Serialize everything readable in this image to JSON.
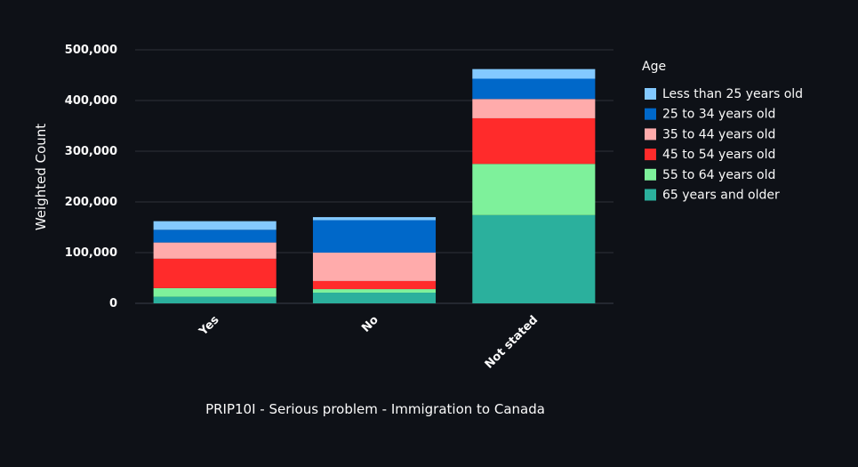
{
  "chart_data": {
    "type": "bar",
    "stacked": true,
    "categories": [
      "Yes",
      "No",
      "Not stated"
    ],
    "xlabel": "PRIP10I - Serious problem - Immigration to Canada",
    "ylabel": "Weighted Count",
    "ylim": [
      0,
      520000
    ],
    "yticks": [
      0,
      100000,
      200000,
      300000,
      400000,
      500000
    ],
    "ytick_labels": [
      "0",
      "100,000",
      "200,000",
      "300,000",
      "400,000",
      "500,000"
    ],
    "grid": true,
    "legend": {
      "title": "Age",
      "position": "right"
    },
    "series": [
      {
        "name": "65 years and older",
        "color": "#2bb09d",
        "values": [
          13000,
          21000,
          174000
        ]
      },
      {
        "name": "55 to 64 years old",
        "color": "#7ef19b",
        "values": [
          17000,
          7000,
          101000
        ]
      },
      {
        "name": "45 to 54 years old",
        "color": "#ff2b2b",
        "values": [
          58000,
          16000,
          90000
        ]
      },
      {
        "name": "35 to 44 years old",
        "color": "#ffabab",
        "values": [
          32000,
          56000,
          38000
        ]
      },
      {
        "name": "25 to 34 years old",
        "color": "#0068c9",
        "values": [
          25000,
          64000,
          40000
        ]
      },
      {
        "name": "Less than 25 years old",
        "color": "#83c9ff",
        "values": [
          17000,
          6000,
          19000
        ]
      }
    ]
  }
}
